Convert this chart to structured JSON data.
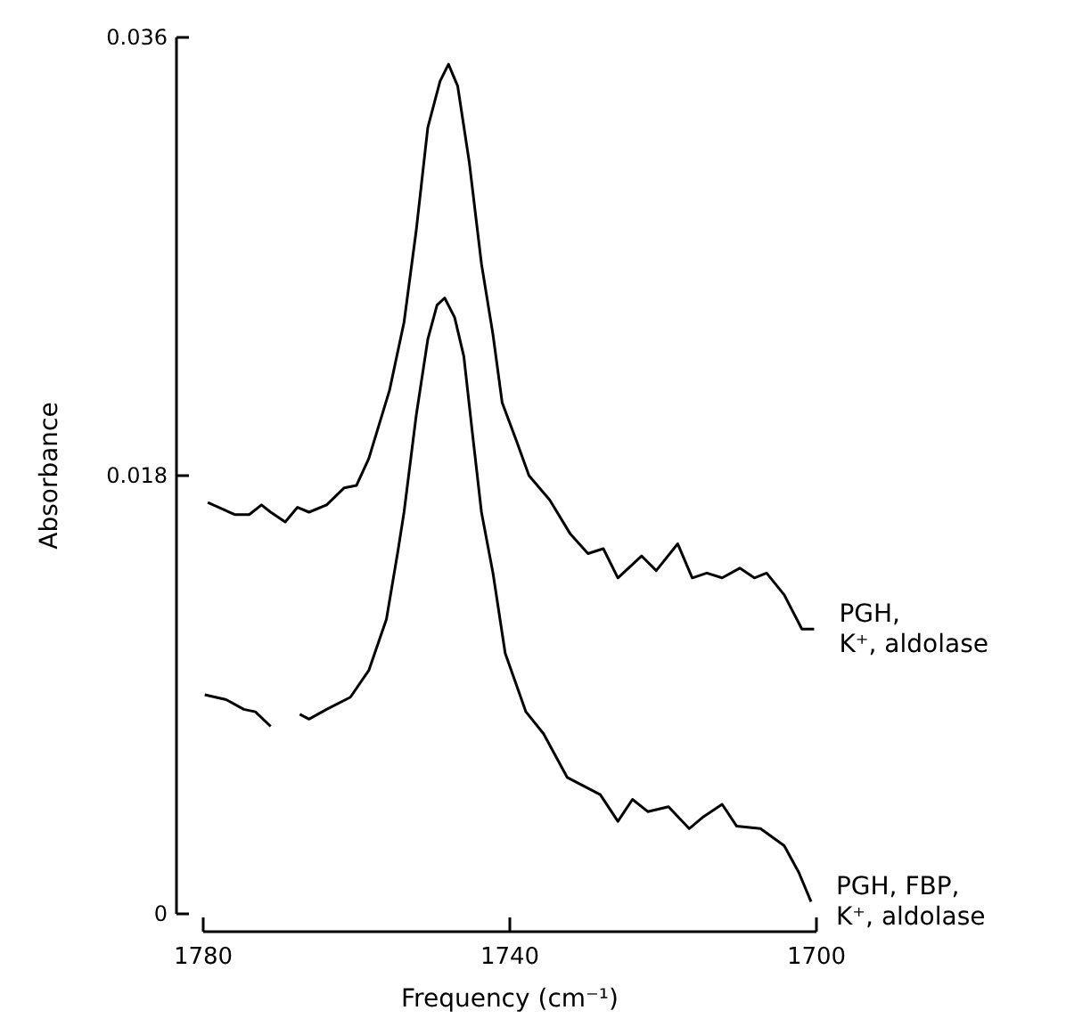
{
  "chart_data": {
    "type": "line",
    "xlabel": "Frequency (cm⁻¹)",
    "ylabel": "Absorbance",
    "xlim": [
      1780,
      1700
    ],
    "xticks": [
      1780,
      1740,
      1700
    ],
    "ylim": [
      0,
      0.036
    ],
    "yticks": [
      0,
      0.018,
      0.036
    ],
    "grid": false,
    "marker": "none",
    "line_style": "solid",
    "series": [
      {
        "name": "PGH,\nK⁺, aldolase",
        "color": "#000000",
        "x": [
          1779.4,
          1775.9,
          1774.0,
          1772.4,
          1771.2,
          1769.3,
          1767.7,
          1766.2,
          1763.9,
          1761.6,
          1760.0,
          1758.4,
          1755.7,
          1753.8,
          1752.2,
          1750.7,
          1749.1,
          1748.0,
          1746.8,
          1745.3,
          1743.7,
          1742.2,
          1741.0,
          1739.1,
          1737.5,
          1734.8,
          1732.1,
          1729.8,
          1727.8,
          1725.9,
          1722.8,
          1720.9,
          1718.1,
          1716.2,
          1714.3,
          1712.3,
          1710.0,
          1708.1,
          1706.5,
          1704.2,
          1701.9,
          1700.3
        ],
        "values": [
          0.0169,
          0.0164,
          0.0164,
          0.0168,
          0.0165,
          0.0161,
          0.0167,
          0.0165,
          0.0168,
          0.0175,
          0.0176,
          0.0187,
          0.0215,
          0.0243,
          0.0281,
          0.0323,
          0.0342,
          0.0349,
          0.034,
          0.0309,
          0.0267,
          0.0238,
          0.021,
          0.0194,
          0.018,
          0.017,
          0.0156,
          0.0148,
          0.015,
          0.0138,
          0.0147,
          0.0141,
          0.0152,
          0.0138,
          0.014,
          0.0138,
          0.0142,
          0.0138,
          0.014,
          0.0131,
          0.0117,
          0.0117
        ]
      },
      {
        "name": "PGH, FBP,\nK⁺, aldolase",
        "color": "#000000",
        "x": [
          1779.8,
          1777.0,
          1774.7,
          1773.2,
          1771.2,
          1769.5,
          1767.4,
          1766.2,
          1763.9,
          1760.8,
          1758.4,
          1756.1,
          1754.6,
          1753.8,
          1752.2,
          1750.7,
          1749.5,
          1748.5,
          1747.2,
          1746.0,
          1744.9,
          1743.7,
          1742.2,
          1740.6,
          1737.9,
          1735.6,
          1732.5,
          1728.2,
          1725.9,
          1724.0,
          1722.0,
          1719.3,
          1716.6,
          1714.7,
          1712.3,
          1710.4,
          1707.3,
          1704.2,
          1702.3,
          1700.7
        ],
        "values": [
          0.009,
          0.0088,
          0.0084,
          0.0083,
          0.0077,
          null,
          0.0082,
          0.008,
          0.0084,
          0.0089,
          0.01,
          0.0121,
          0.0149,
          0.0165,
          0.0205,
          0.0236,
          0.025,
          0.0253,
          0.0245,
          0.0229,
          0.0198,
          0.0165,
          0.014,
          0.0107,
          0.0083,
          0.0074,
          0.0056,
          0.0049,
          0.0038,
          0.0047,
          0.0042,
          0.0044,
          0.0035,
          0.004,
          0.0045,
          0.0036,
          0.0035,
          0.0028,
          0.0017,
          0.0005
        ]
      }
    ]
  }
}
